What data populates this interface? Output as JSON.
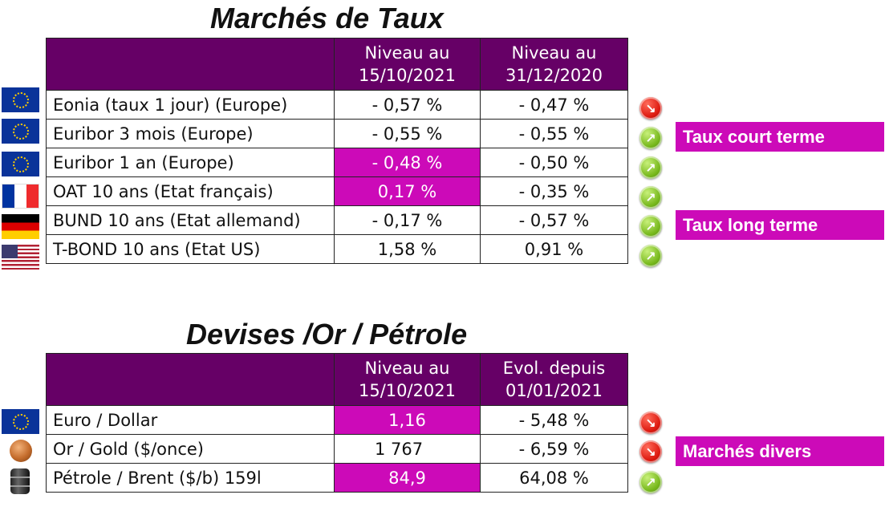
{
  "rates": {
    "title": "Marchés de Taux",
    "header_col1": "Niveau au\n15/10/2021",
    "header_col2": "Niveau au\n31/12/2020",
    "rows": [
      {
        "flag": "eu-flag-icon",
        "label": "Eonia (taux 1 jour) (Europe)",
        "v1": "- 0,57 %",
        "v2": "- 0,47 %",
        "trend": "down",
        "highlight": false
      },
      {
        "flag": "eu-flag-icon",
        "label": "Euribor 3 mois (Europe)",
        "v1": "- 0,55 %",
        "v2": "- 0,55 %",
        "trend": "up",
        "highlight": false
      },
      {
        "flag": "eu-flag-icon",
        "label": "Euribor 1 an (Europe)",
        "v1": "- 0,48 %",
        "v2": "- 0,50 %",
        "trend": "up",
        "highlight": true
      },
      {
        "flag": "france-flag-icon",
        "label": "OAT 10 ans (Etat français)",
        "v1": "0,17 %",
        "v2": "- 0,35 %",
        "trend": "up",
        "highlight": true
      },
      {
        "flag": "germany-flag-icon",
        "label": "BUND 10 ans (Etat allemand)",
        "v1": "- 0,17 %",
        "v2": "- 0,57 %",
        "trend": "up",
        "highlight": false
      },
      {
        "flag": "us-flag-icon",
        "label": "T-BOND 10 ans (Etat US)",
        "v1": "1,58 %",
        "v2": "0,91 %",
        "trend": "up",
        "highlight": false
      }
    ],
    "tags": [
      "Taux court terme",
      "Taux long terme"
    ]
  },
  "misc": {
    "title": "Devises /Or / Pétrole",
    "header_col1": "Niveau au\n15/10/2021",
    "header_col2": "Evol. depuis\n01/01/2021",
    "rows": [
      {
        "flag": "eu-flag-icon",
        "label": "Euro / Dollar",
        "v1": "1,16",
        "v2": "- 5,48 %",
        "trend": "down",
        "highlight": true
      },
      {
        "flag": "gold-coin-icon",
        "label": "Or / Gold ($/once)",
        "v1": "1 767",
        "v2": "- 6,59 %",
        "trend": "down",
        "highlight": false
      },
      {
        "flag": "oil-barrel-icon",
        "label": "Pétrole / Brent ($/b) 159l",
        "v1": "84,9",
        "v2": "64,08 %",
        "trend": "up",
        "highlight": true
      }
    ],
    "tags": [
      "Marchés divers"
    ]
  },
  "colors": {
    "header": "#660066",
    "highlight": "#cc0ab8",
    "up": "#77b81c",
    "down": "#dd1a10"
  }
}
